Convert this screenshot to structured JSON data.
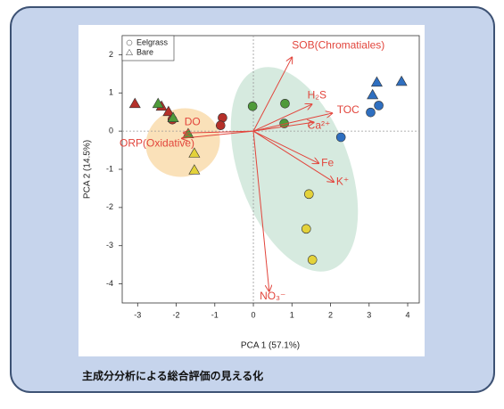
{
  "chart_data": {
    "type": "scatter",
    "xlabel": "PCA 1 (57.1%)",
    "ylabel": "PCA 2 (14.5%)",
    "caption": "主成分分析による総合評価の見える化",
    "xlim": [
      -3.4,
      4.3
    ],
    "ylim": [
      -4.5,
      2.5
    ],
    "xticks": [
      -3,
      -2,
      -1,
      0,
      1,
      2,
      3,
      4
    ],
    "yticks": [
      -4,
      -3,
      -2,
      -1,
      0,
      1,
      2
    ],
    "legend": "top-left",
    "series": [
      {
        "name": "Eelgrass",
        "marker": "circle",
        "x": [
          -0.8,
          -0.85,
          -2.1,
          -0.02,
          0.82,
          0.8,
          2.27,
          3.04,
          3.25,
          1.44,
          1.37,
          1.53
        ],
        "values": [
          0.35,
          0.15,
          0.3,
          0.65,
          0.72,
          0.2,
          -0.16,
          0.49,
          0.67,
          -1.65,
          -2.56,
          -3.37
        ],
        "colors": [
          "#b5302a",
          "#b5302a",
          "#b5302a",
          "#4f9a3a",
          "#4f9a3a",
          "#4f9a3a",
          "#2f6fc0",
          "#2f6fc0",
          "#2f6fc0",
          "#e3d23a",
          "#e3d23a",
          "#e3d23a"
        ]
      },
      {
        "name": "Bare",
        "marker": "triangle",
        "x": [
          -3.07,
          -2.38,
          -2.2,
          -2.47,
          -2.08,
          -1.69,
          3.09,
          3.84,
          3.2,
          -1.53,
          -1.53
        ],
        "values": [
          0.72,
          0.65,
          0.51,
          0.72,
          0.35,
          -0.07,
          0.95,
          1.3,
          1.28,
          -0.58,
          -1.02
        ],
        "colors": [
          "#b5302a",
          "#b5302a",
          "#b5302a",
          "#4f9a3a",
          "#4f9a3a",
          "#4f9a3a",
          "#2f6fc0",
          "#2f6fc0",
          "#2f6fc0",
          "#e3d23a",
          "#e3d23a"
        ]
      }
    ],
    "loading_color": "#e2453c",
    "loadings": [
      {
        "label": "SOB(Chromatiales)",
        "x": 1.0,
        "y": 1.93
      },
      {
        "label": "H₂S",
        "x": 1.51,
        "y": 0.7
      },
      {
        "label": "TOC",
        "x": 2.04,
        "y": 0.47
      },
      {
        "label": "Ca²⁺",
        "x": 1.56,
        "y": 0.23
      },
      {
        "label": "Fe",
        "x": 1.69,
        "y": -0.84
      },
      {
        "label": "K⁺",
        "x": 2.08,
        "y": -1.33
      },
      {
        "label": "NO₃⁻",
        "x": 0.41,
        "y": -4.19
      },
      {
        "label": "DO",
        "x": -1.81,
        "y": -0.05
      },
      {
        "label": "ORP(Oxidative)",
        "x": -1.85,
        "y": -0.19
      }
    ]
  }
}
